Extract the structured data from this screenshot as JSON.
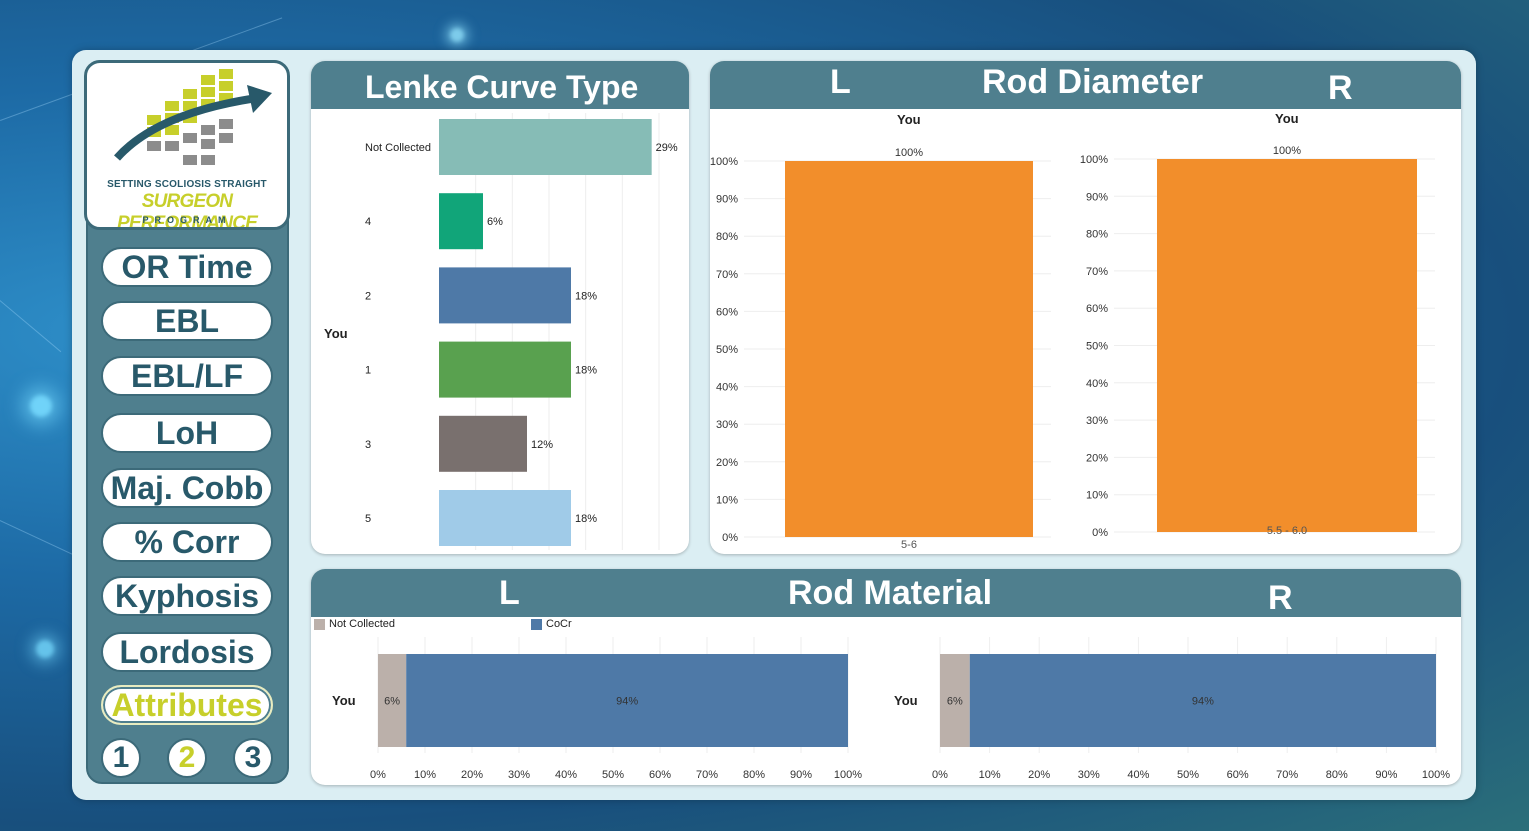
{
  "sidebar": {
    "logo": {
      "line1": "SETTING SCOLIOSIS STRAIGHT",
      "line2": "SURGEON PERFORMANCE",
      "line3": "PROGRAM"
    },
    "nav": [
      {
        "label": "OR Time"
      },
      {
        "label": "EBL"
      },
      {
        "label": "EBL/LF"
      },
      {
        "label": "LoH"
      },
      {
        "label": "Maj. Cobb"
      },
      {
        "label": "% Corr"
      },
      {
        "label": "Kyphosis"
      },
      {
        "label": "Lordosis"
      },
      {
        "label": "Attributes",
        "active": true
      }
    ],
    "pages": [
      "1",
      "2",
      "3"
    ],
    "active_page": "2"
  },
  "colors": {
    "panel_header": "#4f7f8e",
    "accent": "#c7cf2b",
    "text_dark": "#28596a"
  },
  "lenke": {
    "title": "Lenke Curve Type",
    "row_label": "You"
  },
  "rod_diameter": {
    "title": "Rod Diameter",
    "left_label": "L",
    "right_label": "R",
    "left_series": "You",
    "right_series": "You"
  },
  "rod_material": {
    "title": "Rod Material",
    "left_label": "L",
    "right_label": "R",
    "legend": [
      {
        "label": "Not Collected",
        "color": "#bbb0aa"
      },
      {
        "label": "CoCr",
        "color": "#4e79a7"
      }
    ],
    "row_label": "You"
  },
  "chart_data": [
    {
      "id": "lenke",
      "type": "bar",
      "orientation": "horizontal",
      "title": "Lenke Curve Type",
      "categories": [
        "Not Collected",
        "4",
        "2",
        "1",
        "3",
        "5"
      ],
      "values": [
        29,
        6,
        18,
        18,
        12,
        18
      ],
      "value_labels": [
        "29%",
        "6%",
        "18%",
        "18%",
        "12%",
        "18%"
      ],
      "colors": [
        "#86bcb6",
        "#11a579",
        "#4e79a7",
        "#59a14f",
        "#79706e",
        "#a0cbe8"
      ],
      "xlim": [
        0,
        33
      ],
      "grid": true
    },
    {
      "id": "rod_diameter_left",
      "type": "bar",
      "series_label": "You",
      "categories": [
        "5-6"
      ],
      "values": [
        100
      ],
      "value_labels": [
        "100%"
      ],
      "color": "#f28e2b",
      "ylim": [
        0,
        100
      ],
      "yticks": [
        "0%",
        "10%",
        "20%",
        "30%",
        "40%",
        "50%",
        "60%",
        "70%",
        "80%",
        "90%",
        "100%"
      ]
    },
    {
      "id": "rod_diameter_right",
      "type": "bar",
      "series_label": "You",
      "categories": [
        "5.5 - 6.0"
      ],
      "values": [
        100
      ],
      "value_labels": [
        "100%"
      ],
      "color": "#f28e2b",
      "ylim": [
        0,
        100
      ],
      "yticks": [
        "0%",
        "10%",
        "20%",
        "30%",
        "40%",
        "50%",
        "60%",
        "70%",
        "80%",
        "90%",
        "100%"
      ]
    },
    {
      "id": "rod_material_left",
      "type": "bar",
      "orientation": "horizontal",
      "stacked": true,
      "categories": [
        "You"
      ],
      "series": [
        {
          "name": "Not Collected",
          "values": [
            6
          ],
          "label": "6%",
          "color": "#bbb0aa"
        },
        {
          "name": "CoCr",
          "values": [
            94
          ],
          "label": "94%",
          "color": "#4e79a7"
        }
      ],
      "xlim": [
        0,
        100
      ],
      "xticks": [
        "0%",
        "10%",
        "20%",
        "30%",
        "40%",
        "50%",
        "60%",
        "70%",
        "80%",
        "90%",
        "100%"
      ]
    },
    {
      "id": "rod_material_right",
      "type": "bar",
      "orientation": "horizontal",
      "stacked": true,
      "categories": [
        "You"
      ],
      "series": [
        {
          "name": "Not Collected",
          "values": [
            6
          ],
          "label": "6%",
          "color": "#bbb0aa"
        },
        {
          "name": "CoCr",
          "values": [
            94
          ],
          "label": "94%",
          "color": "#4e79a7"
        }
      ],
      "xlim": [
        0,
        100
      ],
      "xticks": [
        "0%",
        "10%",
        "20%",
        "30%",
        "40%",
        "50%",
        "60%",
        "70%",
        "80%",
        "90%",
        "100%"
      ]
    }
  ]
}
